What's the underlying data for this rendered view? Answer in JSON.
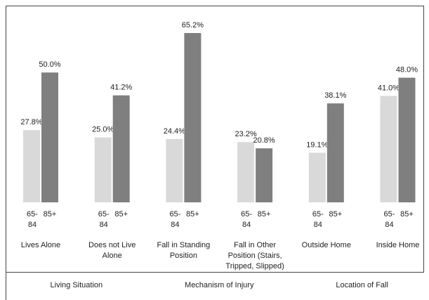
{
  "chart_data": {
    "type": "bar",
    "categories": [
      "Lives Alone",
      "Does not Live Alone",
      "Fall in Standing Position",
      "Fall in Other Position (Stairs, Tripped, Slipped)",
      "Outside Home",
      "Inside Home"
    ],
    "groups": [
      "Living Situation",
      "Mechanism of Injury",
      "Location of Fall"
    ],
    "series": [
      {
        "name": "65-84",
        "color": "#d9d9d9",
        "values": [
          27.8,
          25.0,
          24.4,
          23.2,
          19.1,
          41.0
        ],
        "value_labels": [
          "27.8%",
          "25.0%",
          "24.4%",
          "23.2%",
          "19.1%",
          "41.0%"
        ]
      },
      {
        "name": "85+",
        "color": "#7f7f7f",
        "values": [
          50.0,
          41.2,
          65.2,
          20.8,
          38.1,
          48.0
        ],
        "value_labels": [
          "50.0%",
          "41.2%",
          "65.2%",
          "20.8%",
          "38.1%",
          "48.0%"
        ]
      }
    ]
  }
}
